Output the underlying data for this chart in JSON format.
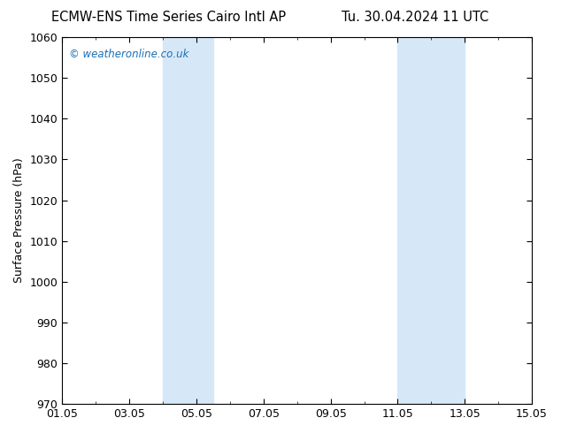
{
  "title_left": "ECMW-ENS Time Series Cairo Intl AP",
  "title_right": "Tu. 30.04.2024 11 UTC",
  "ylabel": "Surface Pressure (hPa)",
  "ylim": [
    970,
    1060
  ],
  "yticks": [
    970,
    980,
    990,
    1000,
    1010,
    1020,
    1030,
    1040,
    1050,
    1060
  ],
  "xlim_start": 0,
  "xlim_end": 14,
  "xtick_labels": [
    "01.05",
    "03.05",
    "05.05",
    "07.05",
    "09.05",
    "11.05",
    "13.05",
    "15.05"
  ],
  "xtick_positions": [
    0,
    2,
    4,
    6,
    8,
    10,
    12,
    14
  ],
  "shade_bands": [
    {
      "xmin": 3.0,
      "xmax": 4.5
    },
    {
      "xmin": 10.0,
      "xmax": 12.0
    }
  ],
  "shade_color": "#d6e8f8",
  "bg_color": "#ffffff",
  "watermark": "© weatheronline.co.uk",
  "watermark_color": "#1a6fb5",
  "title_fontsize": 10.5,
  "label_fontsize": 9,
  "tick_fontsize": 9
}
